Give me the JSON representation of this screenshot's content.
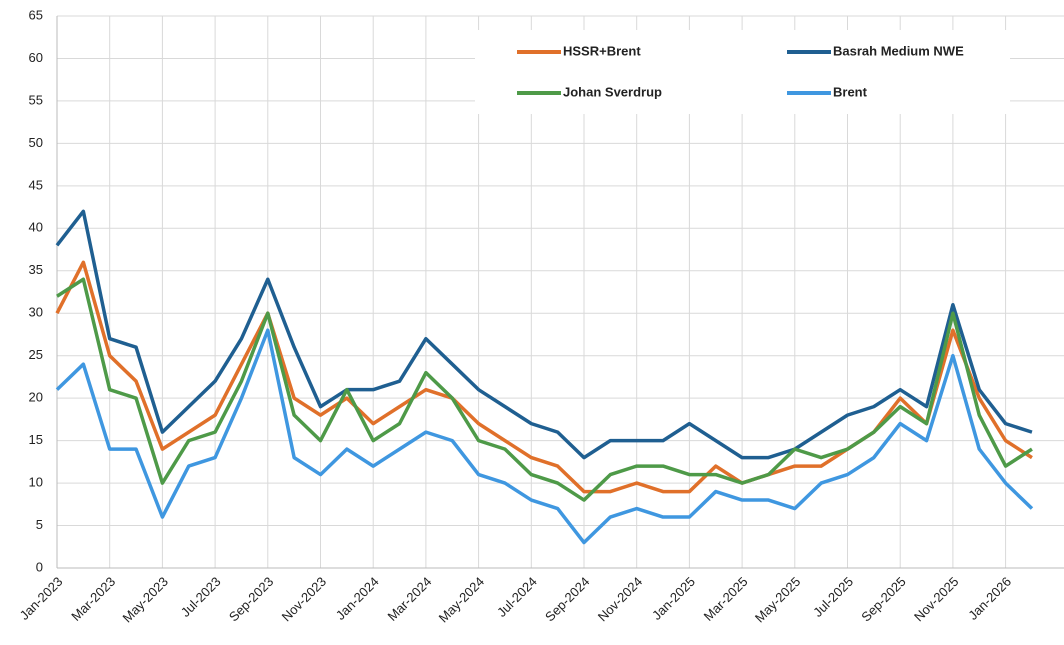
{
  "chart_data": {
    "type": "line",
    "categories": [
      "Jan-2023",
      null,
      "Mar-2023",
      null,
      "May-2023",
      null,
      "Jul-2023",
      null,
      "Sep-2023",
      null,
      "Nov-2023",
      null,
      "Jan-2024",
      null,
      "Mar-2024",
      null,
      "May-2024",
      null,
      "Jul-2024",
      null,
      "Sep-2024",
      null,
      "Nov-2024",
      null,
      "Jan-2025",
      null,
      "Mar-2025",
      null,
      "May-2025",
      null,
      "Jul-2025",
      null,
      "Sep-2025",
      null,
      "Nov-2025",
      null,
      "Jan-2026",
      null
    ],
    "series": [
      {
        "name": "HSSR+Brent",
        "color": "#e0702a",
        "values": [
          30,
          36,
          25,
          22,
          14,
          16,
          18,
          24,
          30,
          20,
          18,
          20,
          17,
          19,
          21,
          20,
          17,
          15,
          13,
          12,
          9,
          9,
          10,
          9,
          9,
          12,
          10,
          11,
          12,
          12,
          14,
          16,
          20,
          17,
          28,
          20,
          15,
          13
        ]
      },
      {
        "name": "Basrah Medium NWE",
        "color": "#1f5f91",
        "values": [
          38,
          42,
          27,
          26,
          16,
          19,
          22,
          27,
          34,
          26,
          19,
          21,
          21,
          22,
          27,
          24,
          21,
          19,
          17,
          16,
          13,
          15,
          15,
          15,
          17,
          15,
          13,
          13,
          14,
          16,
          18,
          19,
          21,
          19,
          31,
          21,
          17,
          16
        ]
      },
      {
        "name": "Johan Sverdrup",
        "color": "#4e9a48",
        "values": [
          32,
          34,
          21,
          20,
          10,
          15,
          16,
          22,
          30,
          18,
          15,
          21,
          15,
          17,
          23,
          20,
          15,
          14,
          11,
          10,
          8,
          11,
          12,
          12,
          11,
          11,
          10,
          11,
          14,
          13,
          14,
          16,
          19,
          17,
          30,
          18,
          12,
          14
        ]
      },
      {
        "name": "Brent",
        "color": "#3f97e0",
        "values": [
          21,
          24,
          14,
          14,
          6,
          12,
          13,
          20,
          28,
          13,
          11,
          14,
          12,
          14,
          16,
          15,
          11,
          10,
          8,
          7,
          3,
          6,
          7,
          6,
          6,
          9,
          8,
          8,
          7,
          10,
          11,
          13,
          17,
          15,
          25,
          14,
          10,
          7
        ]
      }
    ],
    "ylim": [
      0,
      65
    ],
    "yticks": [
      0,
      5,
      10,
      15,
      20,
      25,
      30,
      35,
      40,
      45,
      50,
      55,
      60,
      65
    ],
    "grid": true,
    "legend": "upper right"
  }
}
